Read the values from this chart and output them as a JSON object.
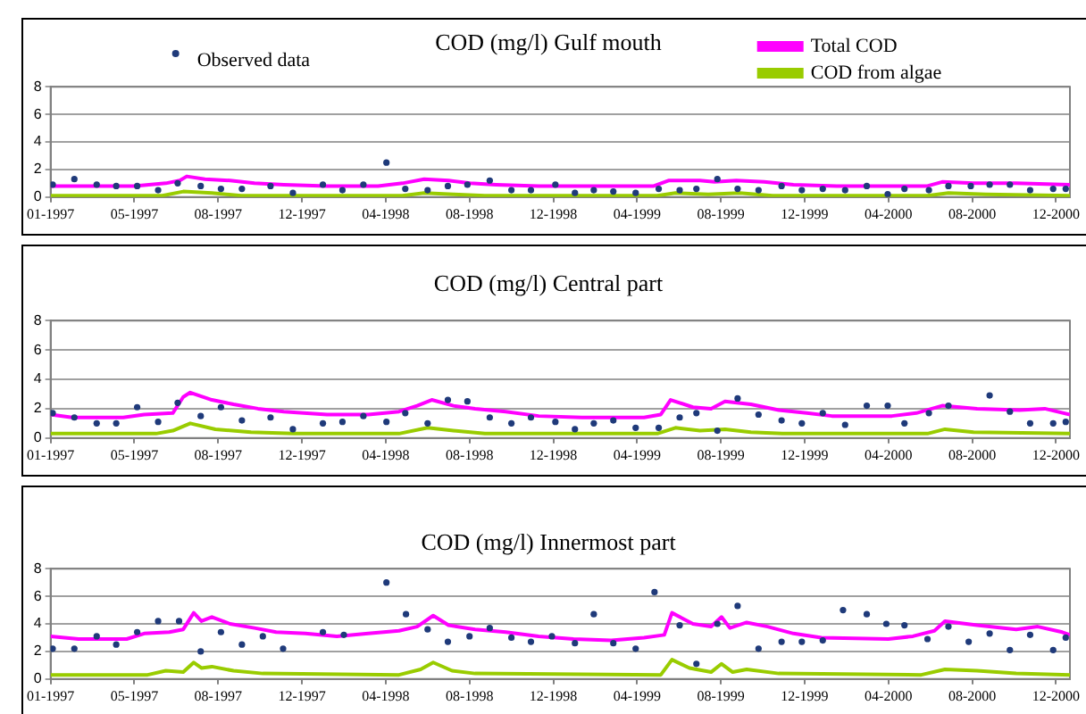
{
  "chart_data": [
    {
      "type": "line",
      "title": "COD (mg/l) Gulf mouth",
      "legend": "top",
      "grid": "y",
      "xlim": [
        "1997-01-01",
        "2000-12-31"
      ],
      "xticks": [
        {
          "value": "1997-01-01",
          "label": "01-1997"
        },
        {
          "value": "1997-05-01",
          "label": "05-1997"
        },
        {
          "value": "1997-08-29",
          "label": "08-1997"
        },
        {
          "value": "1997-12-27",
          "label": "12-1997"
        },
        {
          "value": "1998-04-26",
          "label": "04-1998"
        },
        {
          "value": "1998-08-24",
          "label": "08-1998"
        },
        {
          "value": "1998-12-22",
          "label": "12-1998"
        },
        {
          "value": "1999-04-21",
          "label": "04-1999"
        },
        {
          "value": "1999-08-19",
          "label": "08-1999"
        },
        {
          "value": "1999-12-17",
          "label": "12-1999"
        },
        {
          "value": "2000-04-15",
          "label": "04-2000"
        },
        {
          "value": "2000-08-13",
          "label": "08-2000"
        },
        {
          "value": "2000-12-11",
          "label": "12-2000"
        }
      ],
      "ylim": [
        0,
        8
      ],
      "yticks": [
        0,
        2,
        4,
        6,
        8
      ],
      "series": [
        {
          "name": "Observed data",
          "type": "scatter",
          "marker": "circle",
          "color": "#1f3a7a",
          "x": [
            "1997-01-04",
            "1997-02-04",
            "1997-03-08",
            "1997-04-05",
            "1997-05-05",
            "1997-06-04",
            "1997-07-02",
            "1997-08-04",
            "1997-09-02",
            "1997-10-02",
            "1997-11-12",
            "1997-12-14",
            "1998-01-26",
            "1998-02-23",
            "1998-03-25",
            "1998-04-27",
            "1998-05-24",
            "1998-06-25",
            "1998-07-24",
            "1998-08-21",
            "1998-09-22",
            "1998-10-23",
            "1998-11-20",
            "1998-12-25",
            "1999-01-22",
            "1999-02-18",
            "1999-03-18",
            "1999-04-19",
            "1999-05-22",
            "1999-06-21",
            "1999-07-15",
            "1999-08-14",
            "1999-09-12",
            "1999-10-12",
            "1999-11-14",
            "1999-12-13",
            "2000-01-12",
            "2000-02-13",
            "2000-03-15",
            "2000-04-14",
            "2000-05-08",
            "2000-06-12",
            "2000-07-10",
            "2000-08-11",
            "2000-09-07",
            "2000-10-06",
            "2000-11-04",
            "2000-12-07",
            "2000-12-25"
          ],
          "values": [
            0.9,
            1.3,
            0.9,
            0.8,
            0.8,
            0.5,
            1.0,
            0.8,
            0.6,
            0.6,
            0.8,
            0.3,
            0.9,
            0.5,
            0.9,
            2.5,
            0.6,
            0.5,
            0.8,
            0.9,
            1.2,
            0.5,
            0.5,
            0.9,
            0.3,
            0.5,
            0.4,
            0.3,
            0.6,
            0.5,
            0.6,
            1.3,
            0.6,
            0.5,
            0.8,
            0.5,
            0.6,
            0.5,
            0.8,
            0.2,
            0.6,
            0.5,
            0.8,
            0.8,
            0.9,
            0.9,
            0.5,
            0.6,
            0.6
          ]
        },
        {
          "name": "Total COD",
          "color": "#ff00ff",
          "x": [
            "1997-01-01",
            "1997-03-01",
            "1997-05-01",
            "1997-06-15",
            "1997-07-05",
            "1997-07-15",
            "1997-08-10",
            "1997-09-15",
            "1997-10-20",
            "1997-12-01",
            "1998-02-01",
            "1998-04-15",
            "1998-05-20",
            "1998-06-20",
            "1998-07-25",
            "1998-08-25",
            "1998-10-01",
            "1998-12-01",
            "1999-03-01",
            "1999-05-15",
            "1999-06-05",
            "1999-07-20",
            "1999-08-10",
            "1999-09-10",
            "1999-10-20",
            "1999-12-01",
            "2000-02-01",
            "2000-06-10",
            "2000-07-01",
            "2000-08-15",
            "2000-10-15",
            "2000-12-31"
          ],
          "values": [
            0.8,
            0.8,
            0.8,
            1.0,
            1.2,
            1.5,
            1.3,
            1.2,
            1.0,
            0.9,
            0.8,
            0.8,
            1.0,
            1.3,
            1.2,
            1.0,
            0.9,
            0.8,
            0.8,
            0.8,
            1.2,
            1.2,
            1.1,
            1.2,
            1.1,
            0.9,
            0.8,
            0.8,
            1.1,
            1.0,
            1.0,
            0.9
          ]
        },
        {
          "name": "COD from algae",
          "color": "#99cc00",
          "x": [
            "1997-01-01",
            "1997-06-10",
            "1997-07-10",
            "1997-08-20",
            "1997-10-01",
            "1998-05-20",
            "1998-06-20",
            "1998-08-01",
            "1998-09-15",
            "1999-05-20",
            "1999-06-15",
            "1999-08-01",
            "1999-09-15",
            "1999-11-01",
            "2000-06-10",
            "2000-07-10",
            "2000-09-01",
            "2000-12-31"
          ],
          "values": [
            0.1,
            0.1,
            0.4,
            0.3,
            0.1,
            0.1,
            0.3,
            0.2,
            0.1,
            0.1,
            0.3,
            0.2,
            0.3,
            0.1,
            0.1,
            0.3,
            0.2,
            0.1
          ]
        }
      ]
    },
    {
      "type": "line",
      "title": "COD (mg/l) Central part",
      "grid": "y",
      "xlim": [
        "1997-01-01",
        "2000-12-31"
      ],
      "xticks": [
        {
          "value": "1997-01-01",
          "label": "01-1997"
        },
        {
          "value": "1997-05-01",
          "label": "05-1997"
        },
        {
          "value": "1997-08-29",
          "label": "08-1997"
        },
        {
          "value": "1997-12-27",
          "label": "12-1997"
        },
        {
          "value": "1998-04-26",
          "label": "04-1998"
        },
        {
          "value": "1998-08-24",
          "label": "08-1998"
        },
        {
          "value": "1998-12-22",
          "label": "12-1998"
        },
        {
          "value": "1999-04-21",
          "label": "04-1999"
        },
        {
          "value": "1999-08-19",
          "label": "08-1999"
        },
        {
          "value": "1999-12-17",
          "label": "12-1999"
        },
        {
          "value": "2000-04-15",
          "label": "04-2000"
        },
        {
          "value": "2000-08-13",
          "label": "08-2000"
        },
        {
          "value": "2000-12-11",
          "label": "12-2000"
        }
      ],
      "ylim": [
        0,
        8
      ],
      "yticks": [
        0,
        2,
        4,
        6,
        8
      ],
      "series": [
        {
          "type": "scatter",
          "marker": "circle",
          "color": "#1f3a7a",
          "x": [
            "1997-01-04",
            "1997-02-04",
            "1997-03-08",
            "1997-04-05",
            "1997-05-05",
            "1997-06-04",
            "1997-07-02",
            "1997-08-04",
            "1997-09-02",
            "1997-10-02",
            "1997-11-12",
            "1997-12-14",
            "1998-01-26",
            "1998-02-23",
            "1998-03-25",
            "1998-04-27",
            "1998-05-24",
            "1998-06-25",
            "1998-07-24",
            "1998-08-21",
            "1998-09-22",
            "1998-10-23",
            "1998-11-20",
            "1998-12-25",
            "1999-01-22",
            "1999-02-18",
            "1999-03-18",
            "1999-04-19",
            "1999-05-22",
            "1999-06-21",
            "1999-07-15",
            "1999-08-14",
            "1999-09-12",
            "1999-10-12",
            "1999-11-14",
            "1999-12-13",
            "2000-01-12",
            "2000-02-13",
            "2000-03-15",
            "2000-04-14",
            "2000-05-08",
            "2000-06-12",
            "2000-07-10",
            "2000-09-07",
            "2000-10-06",
            "2000-11-04",
            "2000-12-07",
            "2000-12-25"
          ],
          "values": [
            1.7,
            1.4,
            1.0,
            1.0,
            2.1,
            1.1,
            2.4,
            1.5,
            2.1,
            1.2,
            1.4,
            0.6,
            1.0,
            1.1,
            1.5,
            1.1,
            1.7,
            1.0,
            2.6,
            2.5,
            1.4,
            1.0,
            1.4,
            1.1,
            0.6,
            1.0,
            1.2,
            0.7,
            0.7,
            1.4,
            1.7,
            0.5,
            2.7,
            1.6,
            1.2,
            1.0,
            1.7,
            0.9,
            2.2,
            2.2,
            1.0,
            1.7,
            2.2,
            2.9,
            1.8,
            1.0,
            1.0,
            1.1
          ]
        },
        {
          "color": "#ff00ff",
          "x": [
            "1997-01-01",
            "1997-02-01",
            "1997-04-15",
            "1997-05-15",
            "1997-06-25",
            "1997-07-10",
            "1997-07-20",
            "1997-08-20",
            "1997-09-20",
            "1997-10-25",
            "1997-12-01",
            "1998-02-01",
            "1998-04-01",
            "1998-05-15",
            "1998-06-10",
            "1998-07-01",
            "1998-08-01",
            "1998-09-01",
            "1998-10-15",
            "1998-12-01",
            "1999-02-01",
            "1999-05-01",
            "1999-05-25",
            "1999-06-08",
            "1999-07-10",
            "1999-08-05",
            "1999-08-25",
            "1999-10-01",
            "1999-11-10",
            "1999-12-20",
            "2000-01-25",
            "2000-04-20",
            "2000-05-25",
            "2000-07-01",
            "2000-08-20",
            "2000-10-20",
            "2000-11-25",
            "2000-12-31"
          ],
          "values": [
            1.6,
            1.4,
            1.4,
            1.6,
            1.7,
            2.8,
            3.1,
            2.6,
            2.3,
            2.0,
            1.8,
            1.6,
            1.6,
            1.8,
            2.2,
            2.6,
            2.2,
            2.0,
            1.8,
            1.5,
            1.4,
            1.4,
            1.6,
            2.6,
            2.1,
            2.0,
            2.5,
            2.3,
            1.9,
            1.7,
            1.5,
            1.5,
            1.7,
            2.2,
            2.0,
            1.9,
            2.0,
            1.6
          ]
        },
        {
          "color": "#99cc00",
          "x": [
            "1997-01-01",
            "1997-06-01",
            "1997-06-25",
            "1997-07-20",
            "1997-08-25",
            "1997-10-15",
            "1997-12-15",
            "1998-05-15",
            "1998-06-25",
            "1998-08-01",
            "1998-09-15",
            "1999-05-20",
            "1999-06-15",
            "1999-07-20",
            "1999-08-25",
            "1999-10-01",
            "1999-11-15",
            "2000-06-10",
            "2000-07-05",
            "2000-08-15",
            "2000-12-31"
          ],
          "values": [
            0.3,
            0.3,
            0.5,
            1.0,
            0.6,
            0.4,
            0.3,
            0.3,
            0.7,
            0.5,
            0.3,
            0.3,
            0.7,
            0.5,
            0.6,
            0.4,
            0.3,
            0.3,
            0.6,
            0.4,
            0.3
          ]
        }
      ]
    },
    {
      "type": "line",
      "title": "COD (mg/l) Innermost part",
      "grid": "y",
      "xlim": [
        "1997-01-01",
        "2000-12-31"
      ],
      "xticks": [
        {
          "value": "1997-01-01",
          "label": "01-1997"
        },
        {
          "value": "1997-05-01",
          "label": "05-1997"
        },
        {
          "value": "1997-08-29",
          "label": "08-1997"
        },
        {
          "value": "1997-12-27",
          "label": "12-1997"
        },
        {
          "value": "1998-04-26",
          "label": "04-1998"
        },
        {
          "value": "1998-08-24",
          "label": "08-1998"
        },
        {
          "value": "1998-12-22",
          "label": "12-1998"
        },
        {
          "value": "1999-04-21",
          "label": "04-1999"
        },
        {
          "value": "1999-08-19",
          "label": "08-1999"
        },
        {
          "value": "1999-12-17",
          "label": "12-1999"
        },
        {
          "value": "2000-04-15",
          "label": "04-2000"
        },
        {
          "value": "2000-08-13",
          "label": "08-2000"
        },
        {
          "value": "2000-12-11",
          "label": "12-2000"
        }
      ],
      "ylim": [
        0,
        8
      ],
      "yticks": [
        0,
        2,
        4,
        6,
        8
      ],
      "series": [
        {
          "type": "scatter",
          "marker": "circle",
          "color": "#1f3a7a",
          "x": [
            "1997-01-04",
            "1997-02-04",
            "1997-03-08",
            "1997-04-05",
            "1997-05-05",
            "1997-06-04",
            "1997-07-04",
            "1997-08-04",
            "1997-09-02",
            "1997-10-02",
            "1997-11-01",
            "1997-11-30",
            "1998-01-26",
            "1998-02-25",
            "1998-04-27",
            "1998-05-25",
            "1998-06-25",
            "1998-07-24",
            "1998-08-24",
            "1998-09-22",
            "1998-10-23",
            "1998-11-20",
            "1998-12-20",
            "1999-01-22",
            "1999-02-18",
            "1999-03-18",
            "1999-04-19",
            "1999-05-16",
            "1999-06-21",
            "1999-07-15",
            "1999-08-14",
            "1999-09-12",
            "1999-10-12",
            "1999-11-14",
            "1999-12-13",
            "2000-01-12",
            "2000-02-10",
            "2000-03-15",
            "2000-04-12",
            "2000-05-08",
            "2000-06-10",
            "2000-07-10",
            "2000-08-08",
            "2000-09-07",
            "2000-10-06",
            "2000-11-04",
            "2000-12-07",
            "2000-12-25"
          ],
          "values": [
            2.2,
            2.2,
            3.1,
            2.5,
            3.4,
            4.2,
            4.2,
            2.0,
            3.4,
            2.5,
            3.1,
            2.2,
            3.4,
            3.2,
            7.0,
            4.7,
            3.6,
            2.7,
            3.1,
            3.7,
            3.0,
            2.7,
            3.1,
            2.6,
            4.7,
            2.6,
            2.2,
            6.3,
            3.9,
            1.1,
            4.0,
            5.3,
            2.2,
            2.7,
            2.7,
            2.8,
            5.0,
            4.7,
            4.0,
            3.9,
            2.9,
            3.8,
            2.7,
            3.3,
            2.1,
            3.2,
            2.1,
            3.0
          ]
        },
        {
          "color": "#ff00ff",
          "x": [
            "1997-01-01",
            "1997-02-10",
            "1997-04-20",
            "1997-05-15",
            "1997-06-20",
            "1997-07-10",
            "1997-07-25",
            "1997-08-05",
            "1997-08-20",
            "1997-09-15",
            "1997-10-20",
            "1997-11-20",
            "1998-01-01",
            "1998-02-15",
            "1998-04-01",
            "1998-05-15",
            "1998-06-10",
            "1998-07-03",
            "1998-07-25",
            "1998-09-01",
            "1998-10-15",
            "1998-12-01",
            "1999-01-20",
            "1999-03-15",
            "1999-05-01",
            "1999-05-30",
            "1999-06-10",
            "1999-07-10",
            "1999-08-05",
            "1999-08-20",
            "1999-09-01",
            "1999-09-25",
            "1999-10-25",
            "1999-12-01",
            "2000-01-10",
            "2000-04-15",
            "2000-05-20",
            "2000-06-20",
            "2000-07-05",
            "2000-08-20",
            "2000-10-15",
            "2000-11-15",
            "2000-12-20",
            "2000-12-31"
          ],
          "values": [
            3.1,
            2.9,
            2.9,
            3.3,
            3.4,
            3.6,
            4.8,
            4.2,
            4.5,
            4.0,
            3.7,
            3.4,
            3.3,
            3.1,
            3.3,
            3.5,
            3.8,
            4.6,
            3.9,
            3.6,
            3.4,
            3.1,
            2.9,
            2.8,
            3.0,
            3.2,
            4.8,
            4.0,
            3.8,
            4.5,
            3.7,
            4.1,
            3.8,
            3.3,
            3.0,
            2.9,
            3.1,
            3.5,
            4.2,
            3.9,
            3.6,
            3.8,
            3.4,
            3.2
          ]
        },
        {
          "color": "#99cc00",
          "x": [
            "1997-01-01",
            "1997-05-20",
            "1997-06-15",
            "1997-07-10",
            "1997-07-25",
            "1997-08-05",
            "1997-08-20",
            "1997-09-20",
            "1997-11-01",
            "1998-05-15",
            "1998-06-15",
            "1998-07-03",
            "1998-07-30",
            "1998-09-01",
            "1999-05-25",
            "1999-06-10",
            "1999-07-05",
            "1999-08-05",
            "1999-08-20",
            "1999-09-05",
            "1999-09-25",
            "1999-11-10",
            "2000-06-01",
            "2000-07-05",
            "2000-08-20",
            "2000-10-15",
            "2000-12-31"
          ],
          "values": [
            0.3,
            0.3,
            0.6,
            0.5,
            1.2,
            0.8,
            0.9,
            0.6,
            0.4,
            0.3,
            0.7,
            1.2,
            0.6,
            0.4,
            0.3,
            1.4,
            0.8,
            0.5,
            1.1,
            0.5,
            0.7,
            0.4,
            0.3,
            0.7,
            0.6,
            0.4,
            0.3
          ]
        }
      ]
    }
  ]
}
